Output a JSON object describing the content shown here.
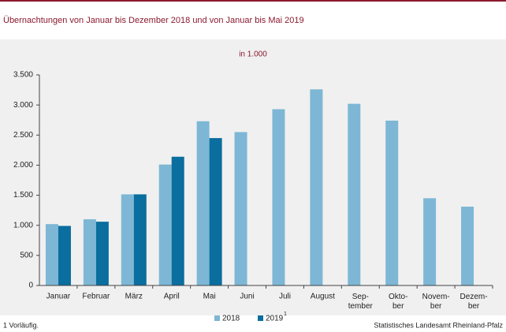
{
  "chart_data": {
    "type": "bar",
    "title": "Übernachtungen von Januar bis Dezember 2018 und von Januar bis Mai 2019",
    "subtitle": "in 1.000",
    "categories": [
      "Januar",
      "Februar",
      "März",
      "April",
      "Mai",
      "Juni",
      "Juli",
      "August",
      "Sep-\ntember",
      "Okto-\nber",
      "Novem-\nber",
      "Dezem-\nber"
    ],
    "series": [
      {
        "name": "2018",
        "color": "#7db7d5",
        "values": [
          1020,
          1100,
          1515,
          2010,
          2730,
          2550,
          2930,
          3260,
          3020,
          2740,
          1450,
          1310
        ]
      },
      {
        "name": "2019",
        "color": "#0a6e9e",
        "values": [
          990,
          1060,
          1515,
          2140,
          2450,
          null,
          null,
          null,
          null,
          null,
          null,
          null
        ]
      }
    ],
    "legend_marker": "1",
    "ylim": [
      0,
      3500
    ],
    "yticks": [
      0,
      500,
      {
        "value": 1000,
        "label": "1.000"
      },
      {
        "value": 1500,
        "label": "1.500"
      },
      {
        "value": 2000,
        "label": "2.000"
      },
      {
        "value": 2500,
        "label": "2.500"
      },
      {
        "value": 3000,
        "label": "3.000"
      },
      {
        "value": 3500,
        "label": "3.500"
      }
    ],
    "grid": false,
    "footnote": "1 Vorläufig.",
    "source": "Statistisches Landesamt Rheinland-Pfalz"
  }
}
